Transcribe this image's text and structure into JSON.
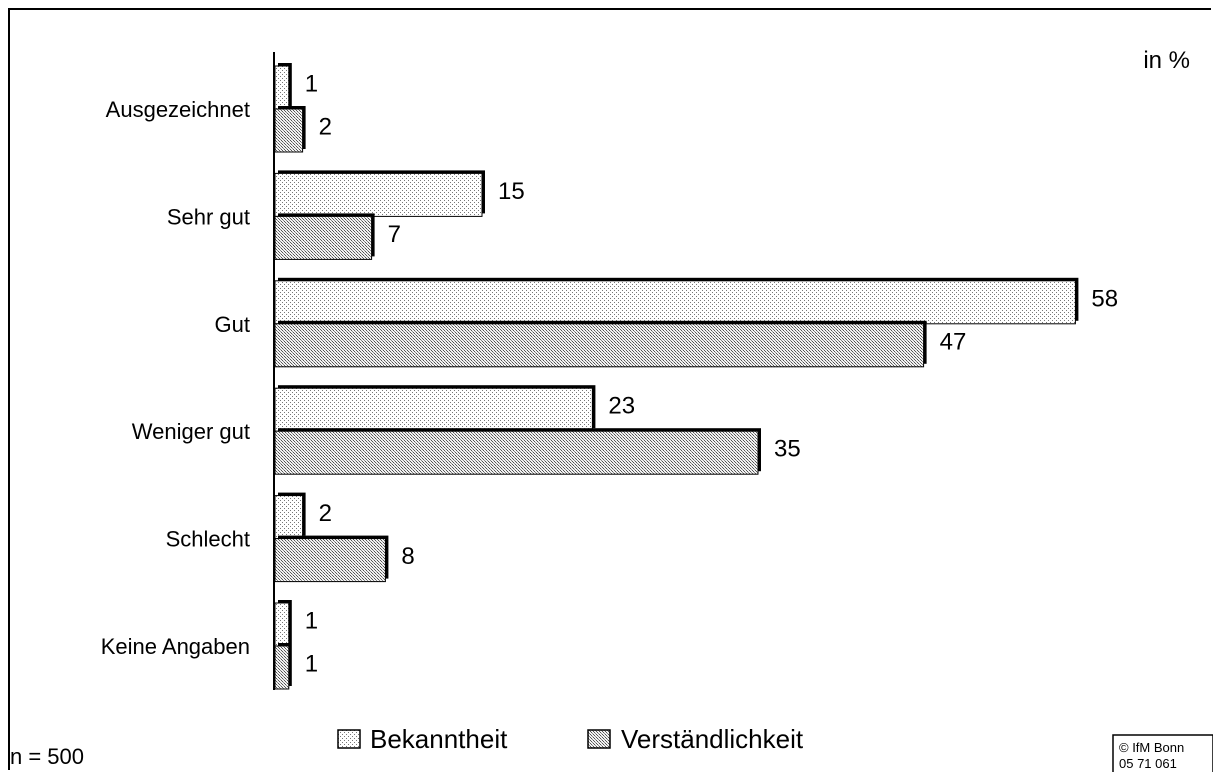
{
  "chart_data": {
    "type": "bar",
    "orientation": "horizontal",
    "unit_label": "in %",
    "categories": [
      "Ausgezeichnet",
      "Sehr gut",
      "Gut",
      "Weniger gut",
      "Schlecht",
      "Keine Angaben"
    ],
    "series": [
      {
        "name": "Bekanntheit",
        "values": [
          1,
          15,
          58,
          23,
          2,
          1
        ],
        "pattern": "light-dots"
      },
      {
        "name": "Verständlichkeit",
        "values": [
          2,
          7,
          47,
          35,
          8,
          1
        ],
        "pattern": "dense-dots"
      }
    ],
    "xlim": [
      0,
      60
    ],
    "grid": false,
    "legend": "bottom-center",
    "footnote": "n = 500",
    "credit": [
      "© IfM Bonn",
      "05 71 061"
    ]
  }
}
